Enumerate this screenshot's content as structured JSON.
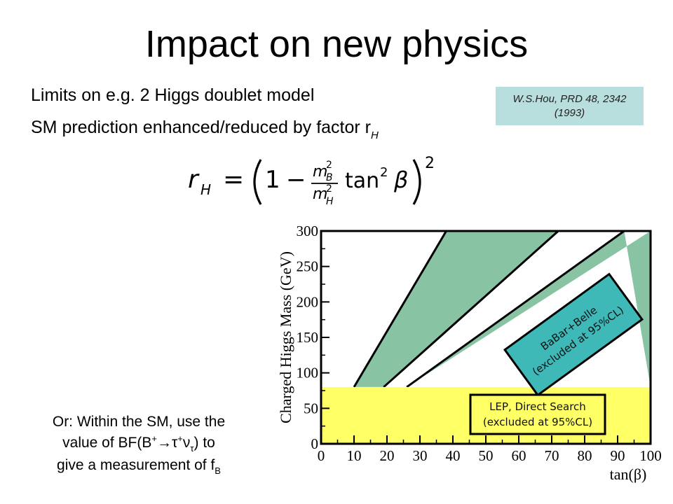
{
  "slide": {
    "title": "Impact on new physics",
    "bullets": [
      {
        "text": "Limits  on e.g. 2 Higgs doublet model"
      },
      {
        "text": "SM prediction enhanced/reduced by factor r",
        "subscript": "H"
      }
    ],
    "citation": "W.S.Hou, PRD 48, 2342 (1993)",
    "formula": {
      "lhs": "r",
      "lhs_sub": "H",
      "eq": "=",
      "one": "1",
      "minus": "−",
      "num": "m",
      "num_sup": "2",
      "num_sub": "B",
      "den": "m",
      "den_sup": "2",
      "den_sub": "H",
      "tan": "tan",
      "tan_sup": "2",
      "beta": "β",
      "outer_sup": "2"
    },
    "bottom_text": {
      "line1": "Or: Within the SM, use the",
      "line2_pre": "value of BF(B",
      "line2_sup1": "+",
      "line2_arrow": "→τ",
      "line2_sup2": "+",
      "line2_nu": "ν",
      "line2_nu_sub": "τ",
      "line2_post": ") to",
      "line3_pre": "give a measurement of f",
      "line3_sub": "B"
    }
  },
  "chart_data": {
    "type": "area",
    "xlabel": "tan(β)",
    "ylabel": "Charged Higgs Mass (GeV)",
    "xlim": [
      0,
      100
    ],
    "ylim": [
      0,
      300
    ],
    "xticks": [
      "0",
      "10",
      "20",
      "30",
      "40",
      "50",
      "60",
      "70",
      "80",
      "90",
      "100"
    ],
    "yticks": [
      "0",
      "50",
      "100",
      "150",
      "200",
      "250",
      "300"
    ],
    "regions": [
      {
        "name": "BaBar+Belle",
        "note": "(excluded at 95%CL)",
        "color": "#88c4a4",
        "bands": [
          {
            "line_a": [
              [
                10,
                80
              ],
              [
                38,
                300
              ]
            ],
            "line_b": [
              [
                19,
                80
              ],
              [
                72,
                300
              ]
            ]
          },
          {
            "line_a": [
              [
                26,
                80
              ],
              [
                92,
                300
              ]
            ],
            "line_b": [
              [
                100,
                300
              ],
              [
                100,
                80
              ]
            ]
          }
        ]
      },
      {
        "name": "LEP, Direct Search",
        "note": "(excluded at 95%CL)",
        "color": "#ffff66",
        "y_range": [
          0,
          80
        ]
      }
    ],
    "label_colors": {
      "babar_box": "#3fb8b8",
      "lep_box": "#ffff66"
    }
  }
}
